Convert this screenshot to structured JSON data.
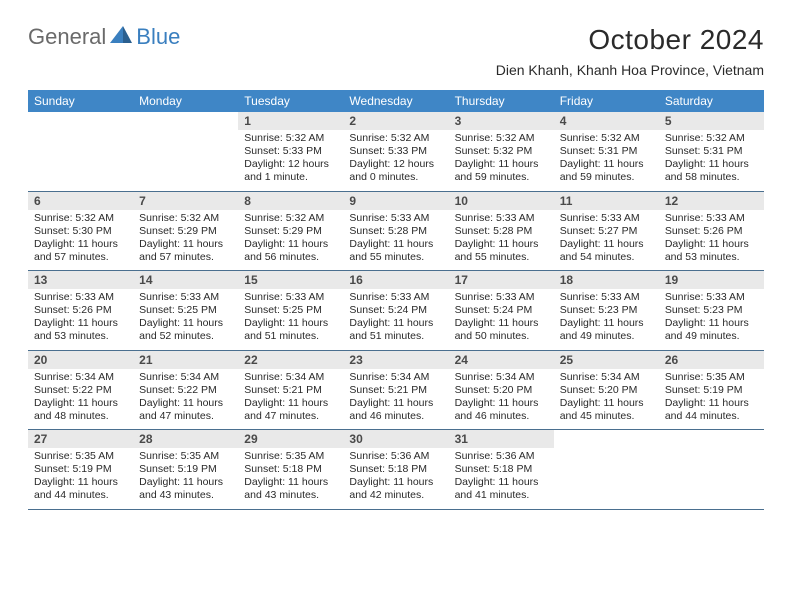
{
  "brand": {
    "part1": "General",
    "part2": "Blue"
  },
  "title": "October 2024",
  "location": "Dien Khanh, Khanh Hoa Province, Vietnam",
  "colors": {
    "header_bg": "#3f86c6",
    "header_text": "#ffffff",
    "daynum_bg": "#e9e9e9",
    "text": "#2a2a2a",
    "border": "#4a6f8f",
    "logo_gray": "#6a6a6a",
    "logo_blue": "#3a7fbf"
  },
  "fonts": {
    "title_pt": 28,
    "location_pt": 14,
    "dayhead_pt": 12,
    "daynum_pt": 12,
    "body_pt": 10.5
  },
  "day_names": [
    "Sunday",
    "Monday",
    "Tuesday",
    "Wednesday",
    "Thursday",
    "Friday",
    "Saturday"
  ],
  "weeks": [
    [
      {
        "n": "",
        "sr": "",
        "ss": "",
        "dl": ""
      },
      {
        "n": "",
        "sr": "",
        "ss": "",
        "dl": ""
      },
      {
        "n": "1",
        "sr": "Sunrise: 5:32 AM",
        "ss": "Sunset: 5:33 PM",
        "dl": "Daylight: 12 hours and 1 minute."
      },
      {
        "n": "2",
        "sr": "Sunrise: 5:32 AM",
        "ss": "Sunset: 5:33 PM",
        "dl": "Daylight: 12 hours and 0 minutes."
      },
      {
        "n": "3",
        "sr": "Sunrise: 5:32 AM",
        "ss": "Sunset: 5:32 PM",
        "dl": "Daylight: 11 hours and 59 minutes."
      },
      {
        "n": "4",
        "sr": "Sunrise: 5:32 AM",
        "ss": "Sunset: 5:31 PM",
        "dl": "Daylight: 11 hours and 59 minutes."
      },
      {
        "n": "5",
        "sr": "Sunrise: 5:32 AM",
        "ss": "Sunset: 5:31 PM",
        "dl": "Daylight: 11 hours and 58 minutes."
      }
    ],
    [
      {
        "n": "6",
        "sr": "Sunrise: 5:32 AM",
        "ss": "Sunset: 5:30 PM",
        "dl": "Daylight: 11 hours and 57 minutes."
      },
      {
        "n": "7",
        "sr": "Sunrise: 5:32 AM",
        "ss": "Sunset: 5:29 PM",
        "dl": "Daylight: 11 hours and 57 minutes."
      },
      {
        "n": "8",
        "sr": "Sunrise: 5:32 AM",
        "ss": "Sunset: 5:29 PM",
        "dl": "Daylight: 11 hours and 56 minutes."
      },
      {
        "n": "9",
        "sr": "Sunrise: 5:33 AM",
        "ss": "Sunset: 5:28 PM",
        "dl": "Daylight: 11 hours and 55 minutes."
      },
      {
        "n": "10",
        "sr": "Sunrise: 5:33 AM",
        "ss": "Sunset: 5:28 PM",
        "dl": "Daylight: 11 hours and 55 minutes."
      },
      {
        "n": "11",
        "sr": "Sunrise: 5:33 AM",
        "ss": "Sunset: 5:27 PM",
        "dl": "Daylight: 11 hours and 54 minutes."
      },
      {
        "n": "12",
        "sr": "Sunrise: 5:33 AM",
        "ss": "Sunset: 5:26 PM",
        "dl": "Daylight: 11 hours and 53 minutes."
      }
    ],
    [
      {
        "n": "13",
        "sr": "Sunrise: 5:33 AM",
        "ss": "Sunset: 5:26 PM",
        "dl": "Daylight: 11 hours and 53 minutes."
      },
      {
        "n": "14",
        "sr": "Sunrise: 5:33 AM",
        "ss": "Sunset: 5:25 PM",
        "dl": "Daylight: 11 hours and 52 minutes."
      },
      {
        "n": "15",
        "sr": "Sunrise: 5:33 AM",
        "ss": "Sunset: 5:25 PM",
        "dl": "Daylight: 11 hours and 51 minutes."
      },
      {
        "n": "16",
        "sr": "Sunrise: 5:33 AM",
        "ss": "Sunset: 5:24 PM",
        "dl": "Daylight: 11 hours and 51 minutes."
      },
      {
        "n": "17",
        "sr": "Sunrise: 5:33 AM",
        "ss": "Sunset: 5:24 PM",
        "dl": "Daylight: 11 hours and 50 minutes."
      },
      {
        "n": "18",
        "sr": "Sunrise: 5:33 AM",
        "ss": "Sunset: 5:23 PM",
        "dl": "Daylight: 11 hours and 49 minutes."
      },
      {
        "n": "19",
        "sr": "Sunrise: 5:33 AM",
        "ss": "Sunset: 5:23 PM",
        "dl": "Daylight: 11 hours and 49 minutes."
      }
    ],
    [
      {
        "n": "20",
        "sr": "Sunrise: 5:34 AM",
        "ss": "Sunset: 5:22 PM",
        "dl": "Daylight: 11 hours and 48 minutes."
      },
      {
        "n": "21",
        "sr": "Sunrise: 5:34 AM",
        "ss": "Sunset: 5:22 PM",
        "dl": "Daylight: 11 hours and 47 minutes."
      },
      {
        "n": "22",
        "sr": "Sunrise: 5:34 AM",
        "ss": "Sunset: 5:21 PM",
        "dl": "Daylight: 11 hours and 47 minutes."
      },
      {
        "n": "23",
        "sr": "Sunrise: 5:34 AM",
        "ss": "Sunset: 5:21 PM",
        "dl": "Daylight: 11 hours and 46 minutes."
      },
      {
        "n": "24",
        "sr": "Sunrise: 5:34 AM",
        "ss": "Sunset: 5:20 PM",
        "dl": "Daylight: 11 hours and 46 minutes."
      },
      {
        "n": "25",
        "sr": "Sunrise: 5:34 AM",
        "ss": "Sunset: 5:20 PM",
        "dl": "Daylight: 11 hours and 45 minutes."
      },
      {
        "n": "26",
        "sr": "Sunrise: 5:35 AM",
        "ss": "Sunset: 5:19 PM",
        "dl": "Daylight: 11 hours and 44 minutes."
      }
    ],
    [
      {
        "n": "27",
        "sr": "Sunrise: 5:35 AM",
        "ss": "Sunset: 5:19 PM",
        "dl": "Daylight: 11 hours and 44 minutes."
      },
      {
        "n": "28",
        "sr": "Sunrise: 5:35 AM",
        "ss": "Sunset: 5:19 PM",
        "dl": "Daylight: 11 hours and 43 minutes."
      },
      {
        "n": "29",
        "sr": "Sunrise: 5:35 AM",
        "ss": "Sunset: 5:18 PM",
        "dl": "Daylight: 11 hours and 43 minutes."
      },
      {
        "n": "30",
        "sr": "Sunrise: 5:36 AM",
        "ss": "Sunset: 5:18 PM",
        "dl": "Daylight: 11 hours and 42 minutes."
      },
      {
        "n": "31",
        "sr": "Sunrise: 5:36 AM",
        "ss": "Sunset: 5:18 PM",
        "dl": "Daylight: 11 hours and 41 minutes."
      },
      {
        "n": "",
        "sr": "",
        "ss": "",
        "dl": ""
      },
      {
        "n": "",
        "sr": "",
        "ss": "",
        "dl": ""
      }
    ]
  ]
}
